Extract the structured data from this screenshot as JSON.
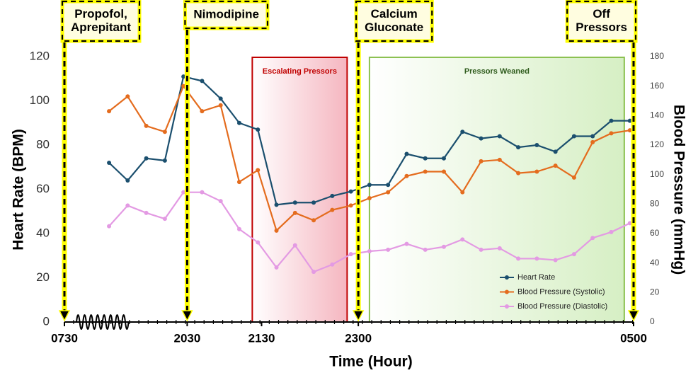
{
  "chart_data": {
    "type": "line",
    "x_title": "Time (Hour)",
    "y_title": "Heart Rate (BPM)",
    "y2_title": "Blood Pressure (mmHg)",
    "x": [
      0,
      1,
      2,
      3,
      4,
      5,
      6,
      7,
      8,
      9,
      10,
      11,
      12,
      13,
      14,
      15,
      16,
      17,
      18,
      19,
      20,
      21,
      22,
      23,
      24,
      25,
      26,
      27,
      28
    ],
    "xlim": [
      -2.4,
      28.2
    ],
    "xticks": [
      {
        "value": -2.4,
        "label": "0730"
      },
      {
        "value": 4.2,
        "label": "2030"
      },
      {
        "value": 8.2,
        "label": "2130"
      },
      {
        "value": 13.4,
        "label": "2300"
      },
      {
        "value": 28.2,
        "label": "0500"
      }
    ],
    "ylim": [
      0,
      120
    ],
    "yticks": [
      0,
      20,
      40,
      60,
      80,
      100,
      120
    ],
    "y2lim": [
      0,
      180
    ],
    "y2ticks": [
      0,
      20,
      40,
      60,
      80,
      100,
      120,
      140,
      160,
      180
    ],
    "series": [
      {
        "name": "Heart Rate",
        "color": "#1b4f6e",
        "values": [
          72,
          64,
          74,
          73,
          111,
          109,
          101,
          90,
          87,
          53,
          54,
          54,
          57,
          59,
          62,
          62,
          76,
          74,
          74,
          86,
          83,
          84,
          79,
          80,
          77,
          84,
          84,
          91,
          91
        ]
      },
      {
        "name": "Blood Pressure (Systolic)",
        "color": "#e46c1e",
        "axis": "y2",
        "values": [
          143,
          153,
          133,
          129,
          160,
          143,
          147,
          95,
          103,
          62,
          74,
          69,
          76,
          79,
          84,
          88,
          99,
          102,
          102,
          88,
          109,
          110,
          101,
          102,
          106,
          98,
          122,
          128,
          130
        ]
      },
      {
        "name": "Blood Pressure (Diastolic)",
        "color": "#e39ae3",
        "axis": "y2",
        "values": [
          65,
          79,
          74,
          70,
          88,
          88,
          82,
          63,
          54,
          37,
          52,
          34,
          39,
          46,
          48,
          49,
          53,
          49,
          51,
          56,
          49,
          50,
          43,
          43,
          42,
          46,
          57,
          61,
          67
        ]
      }
    ],
    "regions": [
      {
        "label": "Escalating Pressors",
        "x": [
          7.7,
          12.8
        ],
        "color": "#c00000",
        "fill": "#f5b6c0"
      },
      {
        "label": "Pressors Weaned",
        "x": [
          14.0,
          27.7
        ],
        "color": "#8cc152",
        "fill": "#d6efc4"
      }
    ],
    "events": [
      {
        "label": [
          "Propofol,",
          "Aprepitant"
        ],
        "x": -2.4
      },
      {
        "label": [
          "Nimodipine"
        ],
        "x": 4.2
      },
      {
        "label": [
          "Calcium",
          "Gluconate"
        ],
        "x": 13.4
      },
      {
        "label": [
          "Off",
          "Pressors"
        ],
        "x": 28.2
      }
    ]
  }
}
